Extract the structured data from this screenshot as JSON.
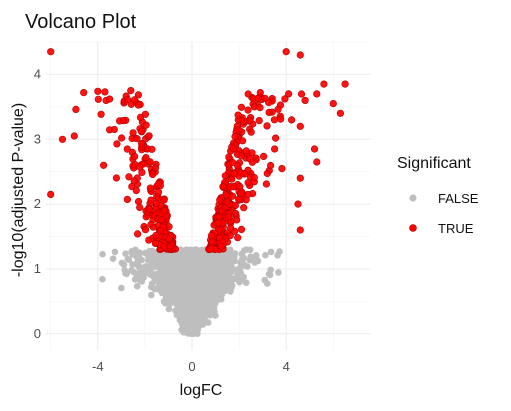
{
  "chart_data": {
    "type": "scatter",
    "title": "Volcano Plot",
    "xlabel": "logFC",
    "ylabel": "-log10(adjusted P-value)",
    "xlim": [
      -6.2,
      7.6
    ],
    "ylim": [
      -0.25,
      4.5
    ],
    "x_ticks": [
      -4,
      0,
      4
    ],
    "y_ticks": [
      0,
      1,
      2,
      3,
      4
    ],
    "grid": true,
    "legend": {
      "title": "Significant",
      "position": "right",
      "entries": [
        {
          "label": "FALSE",
          "color": "#bebebe"
        },
        {
          "label": "TRUE",
          "color": "#ff0000"
        }
      ]
    },
    "significance_threshold": 1.3,
    "colors": {
      "FALSE": "#bebebe",
      "TRUE": "#ff0000",
      "TRUE_stroke": "#b00000"
    },
    "significant_outliers": [
      {
        "x": -6.0,
        "y": 4.35
      },
      {
        "x": -6.0,
        "y": 2.15
      },
      {
        "x": -5.5,
        "y": 3.0
      },
      {
        "x": -5.0,
        "y": 3.05
      },
      {
        "x": -4.6,
        "y": 3.72
      },
      {
        "x": -4.0,
        "y": 3.74
      },
      {
        "x": -3.7,
        "y": 3.73
      },
      {
        "x": -3.5,
        "y": 3.62
      },
      {
        "x": -2.6,
        "y": 3.75
      },
      {
        "x": -3.3,
        "y": 3.15
      },
      {
        "x": -2.5,
        "y": 3.1
      },
      {
        "x": 4.0,
        "y": 4.35
      },
      {
        "x": 4.6,
        "y": 4.3
      },
      {
        "x": 6.5,
        "y": 3.85
      },
      {
        "x": 5.6,
        "y": 3.85
      },
      {
        "x": 5.3,
        "y": 3.7
      },
      {
        "x": 4.8,
        "y": 3.6
      },
      {
        "x": 6.0,
        "y": 3.55
      },
      {
        "x": 6.3,
        "y": 3.4
      },
      {
        "x": 4.1,
        "y": 3.7
      },
      {
        "x": 2.9,
        "y": 3.72
      },
      {
        "x": 3.5,
        "y": 3.3
      },
      {
        "x": 4.6,
        "y": 3.2
      },
      {
        "x": 5.2,
        "y": 2.85
      },
      {
        "x": 4.6,
        "y": 2.4
      },
      {
        "x": 4.5,
        "y": 2.0
      },
      {
        "x": 4.6,
        "y": 1.6
      },
      {
        "x": 5.3,
        "y": 2.65
      }
    ],
    "simulated_points": {
      "nonsignificant_count": 2200,
      "significant_left_count": 210,
      "significant_right_count": 260
    }
  }
}
